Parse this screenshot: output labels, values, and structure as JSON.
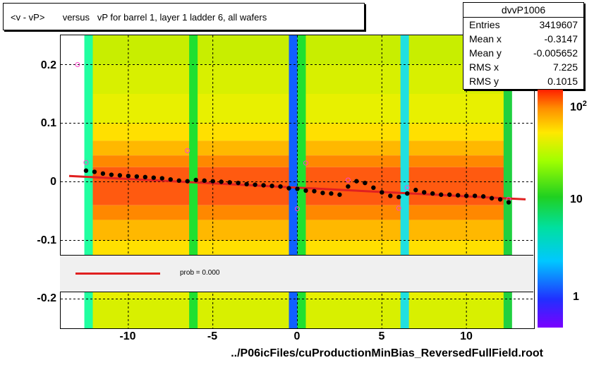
{
  "title": "<v - vP>       versus   vP for barrel 1, layer 1 ladder 6, all wafers",
  "stats": {
    "name": "dvvP1006",
    "rows": [
      {
        "key": "Entries",
        "value": "3419607"
      },
      {
        "key": "Mean x",
        "value": "-0.3147"
      },
      {
        "key": "Mean y",
        "value": "-0.005652"
      },
      {
        "key": "RMS x",
        "value": "7.225"
      },
      {
        "key": "RMS y",
        "value": "0.1015"
      }
    ]
  },
  "legend": {
    "fit_label": "prob = 0.000"
  },
  "xlabel": "../P06icFiles/cuProductionMinBias_ReversedFullField.root",
  "yticks": [
    "0.2",
    "0.1",
    "0",
    "-0.1",
    "-0.2"
  ],
  "xticks": [
    "-10",
    "-5",
    "0",
    "5",
    "10"
  ],
  "zticks": {
    "hundred_base": "10",
    "hundred_exp": "2",
    "ten": "10",
    "one": "1"
  },
  "colors": {
    "fit_line": "#e02020",
    "profile_points": "#000000",
    "open_markers": "#ff44cc"
  },
  "chart_data": {
    "type": "heatmap",
    "title": "<v - vP>       versus   vP for barrel 1, layer 1 ladder 6, all wafers",
    "xlim": [
      -14,
      14
    ],
    "ylim": [
      -0.25,
      0.25
    ],
    "zscale": "log",
    "grid": true,
    "profile": {
      "x": [
        -12.5,
        -12,
        -11.5,
        -11,
        -10.5,
        -10,
        -9.5,
        -9,
        -8.5,
        -8,
        -7.5,
        -7,
        -6.5,
        -6,
        -5.5,
        -5,
        -4.5,
        -4,
        -3.5,
        -3,
        -2.5,
        -2,
        -1.5,
        -1,
        -0.5,
        0,
        0.5,
        1,
        1.5,
        2,
        2.5,
        3,
        3.5,
        4,
        4.5,
        5,
        5.5,
        6,
        6.5,
        7,
        7.5,
        8,
        8.5,
        9,
        9.5,
        10,
        10.5,
        11,
        11.5,
        12,
        12.5
      ],
      "y": [
        0.019,
        0.017,
        0.014,
        0.012,
        0.011,
        0.01,
        0.009,
        0.008,
        0.007,
        0.006,
        0.004,
        0.002,
        0.001,
        0.003,
        0.002,
        0.001,
        0.0,
        -0.001,
        -0.002,
        -0.004,
        -0.005,
        -0.006,
        -0.007,
        -0.008,
        -0.011,
        -0.012,
        -0.015,
        -0.016,
        -0.019,
        -0.02,
        -0.022,
        -0.008,
        0.001,
        -0.002,
        -0.01,
        -0.018,
        -0.024,
        -0.026,
        -0.02,
        -0.014,
        -0.018,
        -0.02,
        -0.022,
        -0.022,
        -0.023,
        -0.024,
        -0.024,
        -0.025,
        -0.028,
        -0.03,
        -0.035
      ]
    },
    "open_markers": {
      "x": [
        -12.5,
        -6.5,
        0.5,
        0,
        3,
        6,
        12.5,
        -13,
        6.5
      ],
      "y": [
        0.033,
        0.053,
        0.032,
        -0.046,
        0.003,
        -0.045,
        -0.03,
        0.2,
        -0.01
      ]
    },
    "fit_line": {
      "x": [
        -13.5,
        13.5
      ],
      "y": [
        0.01,
        -0.03
      ]
    }
  }
}
